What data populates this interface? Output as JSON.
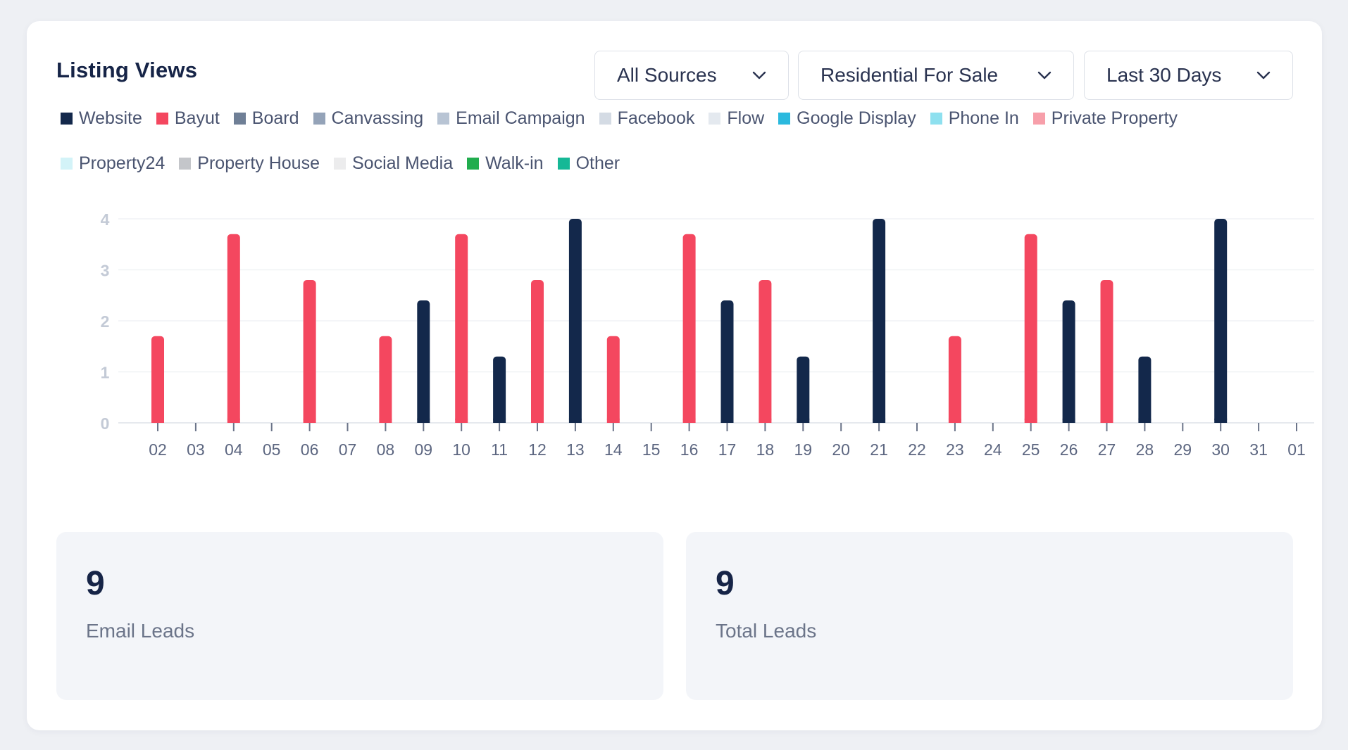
{
  "card": {
    "title": "Listing Views",
    "filters": {
      "source": "All Sources",
      "type": "Residential For Sale",
      "range": "Last 30 Days"
    }
  },
  "legend": [
    {
      "label": "Website",
      "color": "#13284b"
    },
    {
      "label": "Bayut",
      "color": "#f4475f"
    },
    {
      "label": "Board",
      "color": "#6f7f96"
    },
    {
      "label": "Canvassing",
      "color": "#94a3b8"
    },
    {
      "label": "Email Campaign",
      "color": "#b8c4d4"
    },
    {
      "label": "Facebook",
      "color": "#d4dbe4"
    },
    {
      "label": "Flow",
      "color": "#e4e9ef"
    },
    {
      "label": "Google Display",
      "color": "#2bb9de"
    },
    {
      "label": "Phone In",
      "color": "#8ee0ef"
    },
    {
      "label": "Private Property",
      "color": "#f79faa"
    },
    {
      "label": "Property24",
      "color": "#d3f3f8"
    },
    {
      "label": "Property House",
      "color": "#c4c6ca"
    },
    {
      "label": "Social Media",
      "color": "#ececed"
    },
    {
      "label": "Walk-in",
      "color": "#21ad4e"
    },
    {
      "label": "Other",
      "color": "#16b896"
    }
  ],
  "chart_data": {
    "type": "bar",
    "categories": [
      "02",
      "03",
      "04",
      "05",
      "06",
      "07",
      "08",
      "09",
      "10",
      "11",
      "12",
      "13",
      "14",
      "15",
      "16",
      "17",
      "18",
      "19",
      "20",
      "21",
      "22",
      "23",
      "24",
      "25",
      "26",
      "27",
      "28",
      "29",
      "30",
      "31",
      "01"
    ],
    "ylim": [
      0,
      4
    ],
    "yticks": [
      "0",
      "1",
      "2",
      "3",
      "4"
    ],
    "series": [
      {
        "name": "Website",
        "color": "#13284b",
        "values": [
          0,
          0,
          0,
          0,
          0,
          0,
          0,
          2.4,
          0,
          1.3,
          0,
          4,
          0,
          0,
          0,
          2.4,
          0,
          1.3,
          0,
          4,
          0,
          0,
          0,
          0,
          2.4,
          0,
          1.3,
          0,
          4,
          0,
          0
        ]
      },
      {
        "name": "Bayut",
        "color": "#f4475f",
        "values": [
          1.7,
          0,
          3.7,
          0,
          2.8,
          0,
          1.7,
          0,
          3.7,
          0,
          2.8,
          0,
          1.7,
          0,
          3.7,
          0,
          2.8,
          0,
          0,
          0,
          0,
          1.7,
          0,
          3.7,
          0,
          2.8,
          0,
          0,
          0,
          0,
          0
        ]
      }
    ]
  },
  "stats": [
    {
      "value": "9",
      "label": "Email Leads"
    },
    {
      "value": "9",
      "label": "Total Leads"
    }
  ]
}
